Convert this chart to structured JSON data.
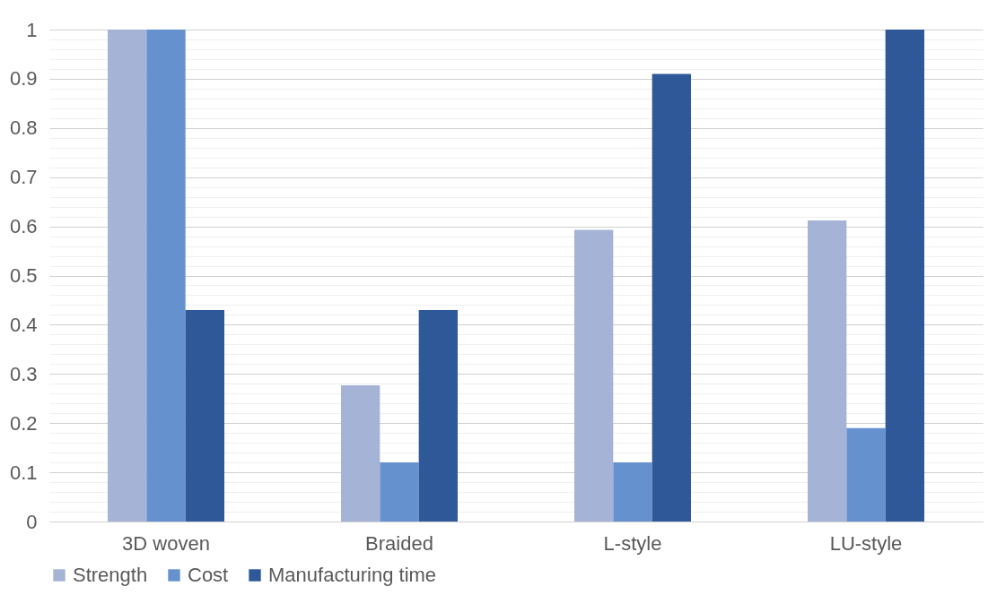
{
  "chart_data": {
    "type": "bar",
    "categories": [
      "3D woven",
      "Braided",
      "L-style",
      "LU-style"
    ],
    "series": [
      {
        "name": "Strength",
        "color": "#a5b3d6",
        "values": [
          1,
          0.277,
          0.593,
          0.612
        ]
      },
      {
        "name": "Cost",
        "color": "#6691cf",
        "values": [
          1,
          0.12,
          0.12,
          0.19
        ]
      },
      {
        "name": "Manufacturing time",
        "color": "#2e5898",
        "values": [
          0.43,
          0.43,
          0.91,
          1
        ]
      }
    ],
    "ylim": [
      0,
      1
    ],
    "yticks": [
      0,
      {
        "value": 0.02,
        "label": null
      },
      {
        "value": 0.04,
        "label": null
      },
      {
        "value": 0.06,
        "label": null
      },
      {
        "value": 0.08,
        "label": null
      },
      0.1,
      {
        "value": 0.12,
        "label": null
      },
      {
        "value": 0.14,
        "label": null
      },
      {
        "value": 0.16,
        "label": null
      },
      {
        "value": 0.18,
        "label": null
      },
      0.2,
      {
        "value": 0.22,
        "label": null
      },
      {
        "value": 0.24,
        "label": null
      },
      {
        "value": 0.26,
        "label": null
      },
      {
        "value": 0.28,
        "label": null
      },
      0.3,
      {
        "value": 0.32,
        "label": null
      },
      {
        "value": 0.34,
        "label": null
      },
      {
        "value": 0.36,
        "label": null
      },
      {
        "value": 0.38,
        "label": null
      },
      0.4,
      {
        "value": 0.42,
        "label": null
      },
      {
        "value": 0.44,
        "label": null
      },
      {
        "value": 0.46,
        "label": null
      },
      {
        "value": 0.48,
        "label": null
      },
      0.5,
      {
        "value": 0.52,
        "label": null
      },
      {
        "value": 0.54,
        "label": null
      },
      {
        "value": 0.56,
        "label": null
      },
      {
        "value": 0.58,
        "label": null
      },
      0.6,
      {
        "value": 0.62,
        "label": null
      },
      {
        "value": 0.64,
        "label": null
      },
      {
        "value": 0.66,
        "label": null
      },
      {
        "value": 0.68,
        "label": null
      },
      0.7,
      {
        "value": 0.72,
        "label": null
      },
      {
        "value": 0.74,
        "label": null
      },
      {
        "value": 0.76,
        "label": null
      },
      {
        "value": 0.78,
        "label": null
      },
      0.8,
      {
        "value": 0.82,
        "label": null
      },
      {
        "value": 0.84,
        "label": null
      },
      {
        "value": 0.86,
        "label": null
      },
      {
        "value": 0.88,
        "label": null
      },
      0.9,
      {
        "value": 0.92,
        "label": null
      },
      {
        "value": 0.94,
        "label": null
      },
      {
        "value": 0.96,
        "label": null
      },
      {
        "value": 0.98,
        "label": null
      },
      1
    ],
    "grid": "y",
    "legend": "bottom"
  }
}
